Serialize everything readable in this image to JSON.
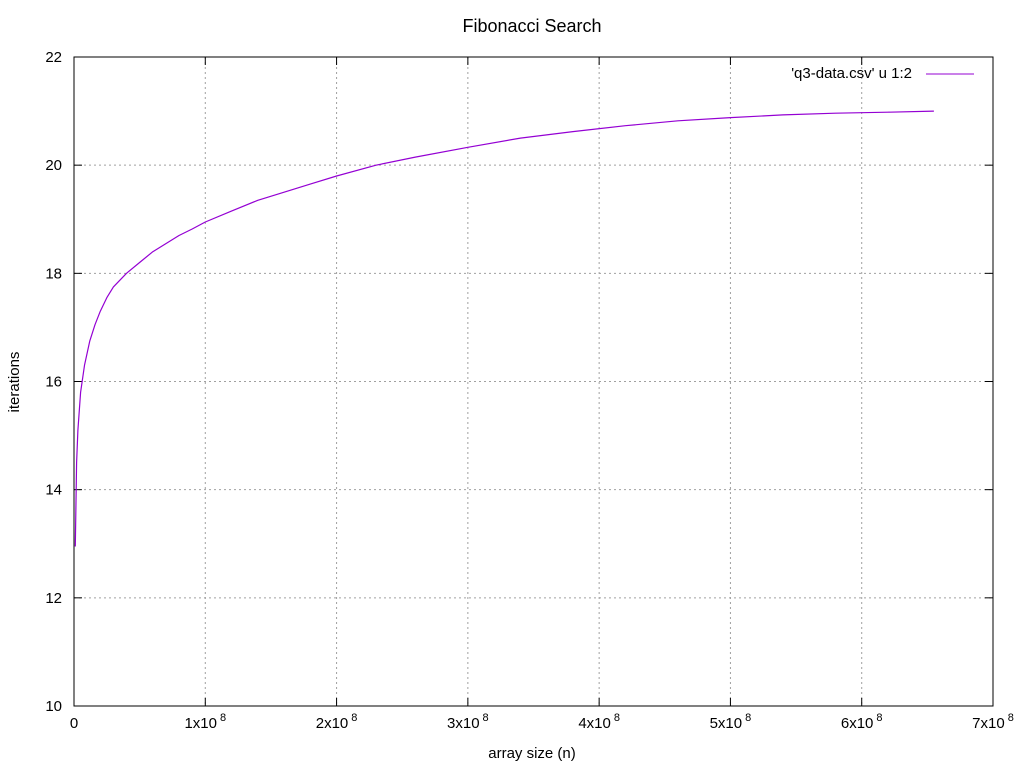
{
  "chart_data": {
    "type": "line",
    "title": "Fibonacci Search",
    "xlabel": "array size (n)",
    "ylabel": "iterations",
    "xlim": [
      0,
      700000000
    ],
    "ylim": [
      10,
      22
    ],
    "grid": true,
    "legend_position": "top-right",
    "x_ticks": [
      {
        "value": 0,
        "base": "0",
        "exp": ""
      },
      {
        "value": 100000000,
        "base": "1x10",
        "exp": "8"
      },
      {
        "value": 200000000,
        "base": "2x10",
        "exp": "8"
      },
      {
        "value": 300000000,
        "base": "3x10",
        "exp": "8"
      },
      {
        "value": 400000000,
        "base": "4x10",
        "exp": "8"
      },
      {
        "value": 500000000,
        "base": "5x10",
        "exp": "8"
      },
      {
        "value": 600000000,
        "base": "6x10",
        "exp": "8"
      },
      {
        "value": 700000000,
        "base": "7x10",
        "exp": "8"
      }
    ],
    "y_ticks": [
      {
        "value": 10,
        "label": "10"
      },
      {
        "value": 12,
        "label": "12"
      },
      {
        "value": 14,
        "label": "14"
      },
      {
        "value": 16,
        "label": "16"
      },
      {
        "value": 18,
        "label": "18"
      },
      {
        "value": 20,
        "label": "20"
      },
      {
        "value": 22,
        "label": "22"
      }
    ],
    "series": [
      {
        "name": "'q3-data.csv' u 1:2",
        "color": "#9400d3",
        "x": [
          1000000,
          2000000,
          3000000,
          5000000,
          8000000,
          12000000,
          16000000,
          20000000,
          25000000,
          30000000,
          40000000,
          50000000,
          60000000,
          70000000,
          80000000,
          90000000,
          100000000,
          120000000,
          140000000,
          160000000,
          180000000,
          200000000,
          230000000,
          260000000,
          300000000,
          340000000,
          380000000,
          420000000,
          460000000,
          500000000,
          540000000,
          580000000,
          620000000,
          655000000
        ],
        "y": [
          12.95,
          14.5,
          15.1,
          15.8,
          16.3,
          16.75,
          17.05,
          17.3,
          17.55,
          17.75,
          18.0,
          18.2,
          18.4,
          18.55,
          18.7,
          18.82,
          18.95,
          19.15,
          19.35,
          19.5,
          19.65,
          19.8,
          20.0,
          20.15,
          20.33,
          20.5,
          20.62,
          20.73,
          20.82,
          20.88,
          20.93,
          20.96,
          20.98,
          21.0
        ]
      }
    ]
  }
}
